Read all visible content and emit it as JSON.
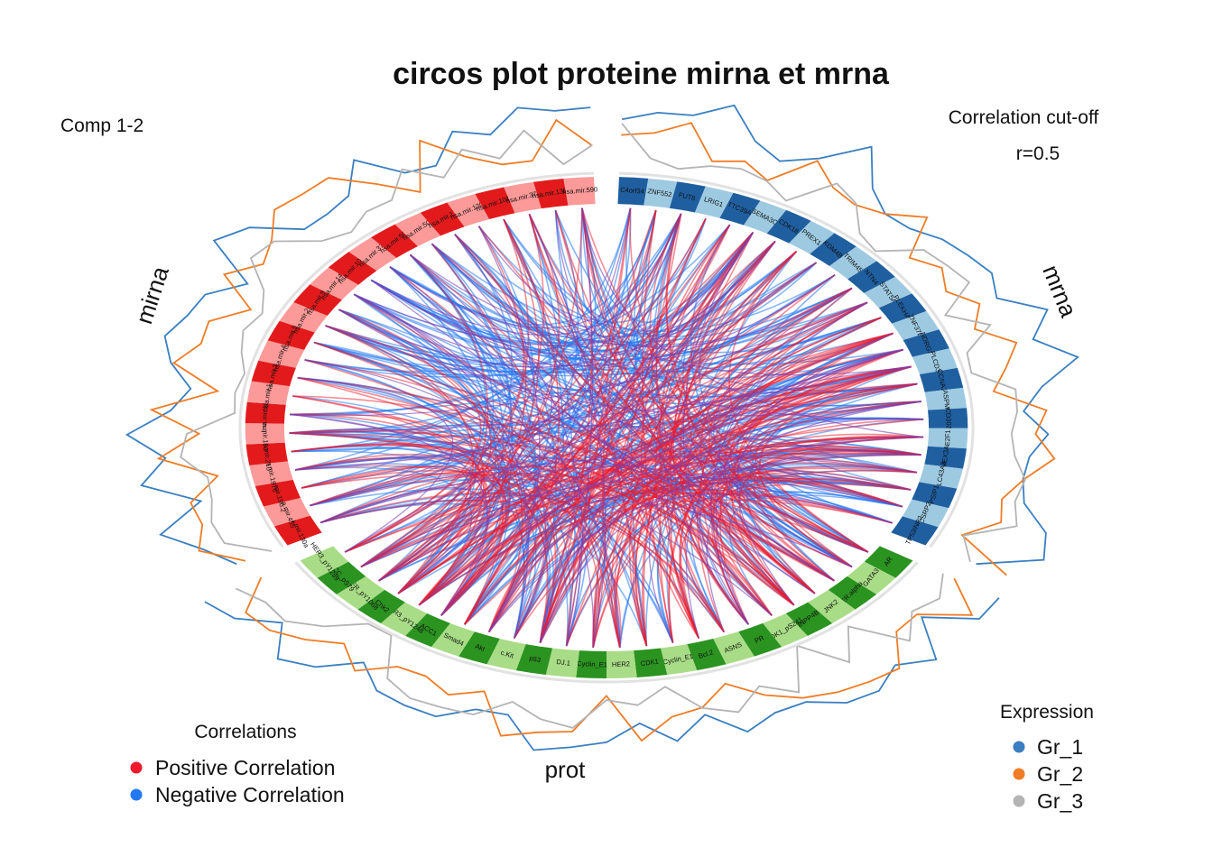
{
  "chart_data": {
    "type": "circos",
    "title": "circos plot proteine mirna et mrna",
    "comp_label": "Comp 1-2",
    "cutoff_label": "Correlation cut-off",
    "cutoff_value": "r=0.5",
    "cutoff": 0.5,
    "blocks": [
      {
        "name": "mirna",
        "colors": [
          "#e31a1c",
          "#fb9a99"
        ],
        "features": [
          "hsa.mir.130a",
          "hsa.mir.455",
          "hsa.mir.19b.2",
          "hsa.mir.1976",
          "hsa.mir.210",
          "hsa.mir.150",
          "hsa.mir.181c",
          "hsa.mir.186",
          "hsa.mir.345",
          "hsa.mir.497",
          "hsa.mir.9.1",
          "hsa.mir.20a",
          "hsa.mir.9.2",
          "hsa.mir.146a",
          "hsa.mir.106a",
          "hsa.mir.375",
          "hsa.mir.501",
          "hsa.mir.505",
          "hsa.mir.17",
          "hsa.mir.1301",
          "hsa.mir.101.2",
          "hsa.mir.378",
          "hsa.mir.130b",
          "hsa.mir.590"
        ]
      },
      {
        "name": "mrna",
        "colors": [
          "#1f5fa0",
          "#9ecae1"
        ],
        "features": [
          "C4orf34",
          "ZNF552",
          "FUT8",
          "LRIG1",
          "TTC39A",
          "SEMA3C",
          "CDK18",
          "PREX1",
          "KDM4B",
          "TRIM45",
          "NTN4",
          "STAT5A",
          "PLEKHA4",
          "ZNF37B",
          "NDRG2",
          "PLCD3",
          "CCNA2",
          "ASPM",
          "CD302",
          "E2F1",
          "MEX3A",
          "SLC43A3",
          "PSIP1",
          "CSRP2",
          "TP53INP2"
        ]
      },
      {
        "name": "prot",
        "colors": [
          "#2b9320",
          "#a8dc86"
        ],
        "features": [
          "AR",
          "GATA3",
          "ER.alpha",
          "JNK2",
          "INPP4B",
          "PDK1_pS241",
          "PR",
          "ASNS",
          "Bcl.2",
          "Cyclin_E1",
          "CDK1",
          "HER2",
          "Cyclin_E1",
          "DJ.1",
          "p53",
          "c.Kit",
          "Akt",
          "Smad4",
          "ACC1",
          "HER3_pY1248",
          "Chk2",
          "EGFR_pY1068",
          "ACC_pS79",
          "HER3_pY1289"
        ]
      }
    ],
    "correlation_legend": {
      "title": "Correlations",
      "items": [
        {
          "label": "Positive Correlation",
          "color": "#f01a2c"
        },
        {
          "label": "Negative Correlation",
          "color": "#2378f4"
        }
      ]
    },
    "expression_legend": {
      "title": "Expression",
      "items": [
        {
          "label": "Gr_1",
          "color": "#3a7fc1"
        },
        {
          "label": "Gr_2",
          "color": "#f07c26"
        },
        {
          "label": "Gr_3",
          "color": "#b4b4b4"
        }
      ]
    }
  }
}
